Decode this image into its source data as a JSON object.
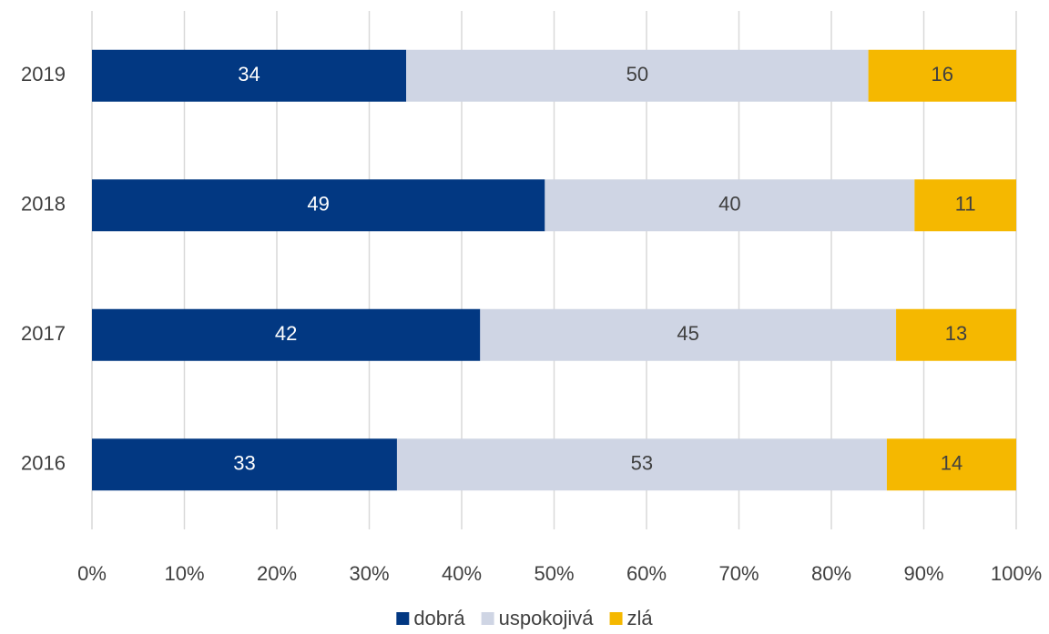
{
  "chart_data": {
    "type": "stacked-bar-horizontal",
    "categories": [
      "2019",
      "2018",
      "2017",
      "2016"
    ],
    "series": [
      {
        "name": "dobrá",
        "color": "#023882",
        "values": [
          34,
          49,
          42,
          33
        ]
      },
      {
        "name": "uspokojivá",
        "color": "#cfd5e4",
        "values": [
          50,
          40,
          45,
          53
        ]
      },
      {
        "name": "zlá",
        "color": "#f5b800",
        "values": [
          16,
          11,
          13,
          14
        ]
      }
    ],
    "xlim": [
      0,
      100
    ],
    "xticks": [
      {
        "value": 0,
        "label": "0%"
      },
      {
        "value": 10,
        "label": "10%"
      },
      {
        "value": 20,
        "label": "20%"
      },
      {
        "value": 30,
        "label": "30%"
      },
      {
        "value": 40,
        "label": "40%"
      },
      {
        "value": 50,
        "label": "50%"
      },
      {
        "value": 60,
        "label": "60%"
      },
      {
        "value": 70,
        "label": "70%"
      },
      {
        "value": 80,
        "label": "80%"
      },
      {
        "value": 90,
        "label": "90%"
      },
      {
        "value": 100,
        "label": "100%"
      }
    ],
    "grid": true,
    "legend": "bottom"
  }
}
